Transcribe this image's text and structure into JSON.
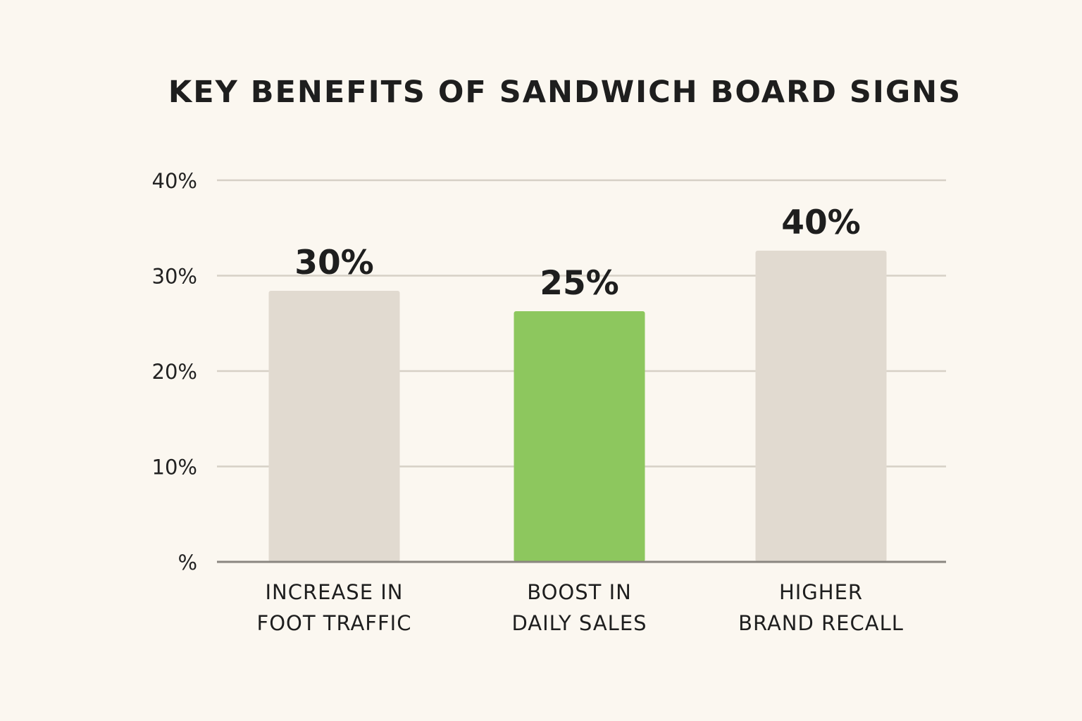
{
  "chart_data": {
    "type": "bar",
    "title": "KEY BENEFITS OF SANDWICH BOARD SIGNS",
    "xlabel": "",
    "ylabel": "",
    "ylim": [
      0,
      40
    ],
    "yticks": [
      0,
      10,
      20,
      30,
      40
    ],
    "ytick_labels": [
      "%",
      "10%",
      "20%",
      "30%",
      "40%"
    ],
    "grid": true,
    "legend": "none",
    "categories": [
      [
        "INCREASE IN",
        "FOOT TRAFFIC"
      ],
      [
        "BOOST IN",
        "DAILY SALES"
      ],
      [
        "HIGHER",
        "BRAND RECALL"
      ]
    ],
    "values": [
      30,
      25,
      40
    ],
    "value_labels": [
      "30%",
      "25%",
      "40%"
    ],
    "bar_colors": [
      "#e1dad0",
      "#8dc75e",
      "#e1dad0"
    ]
  }
}
